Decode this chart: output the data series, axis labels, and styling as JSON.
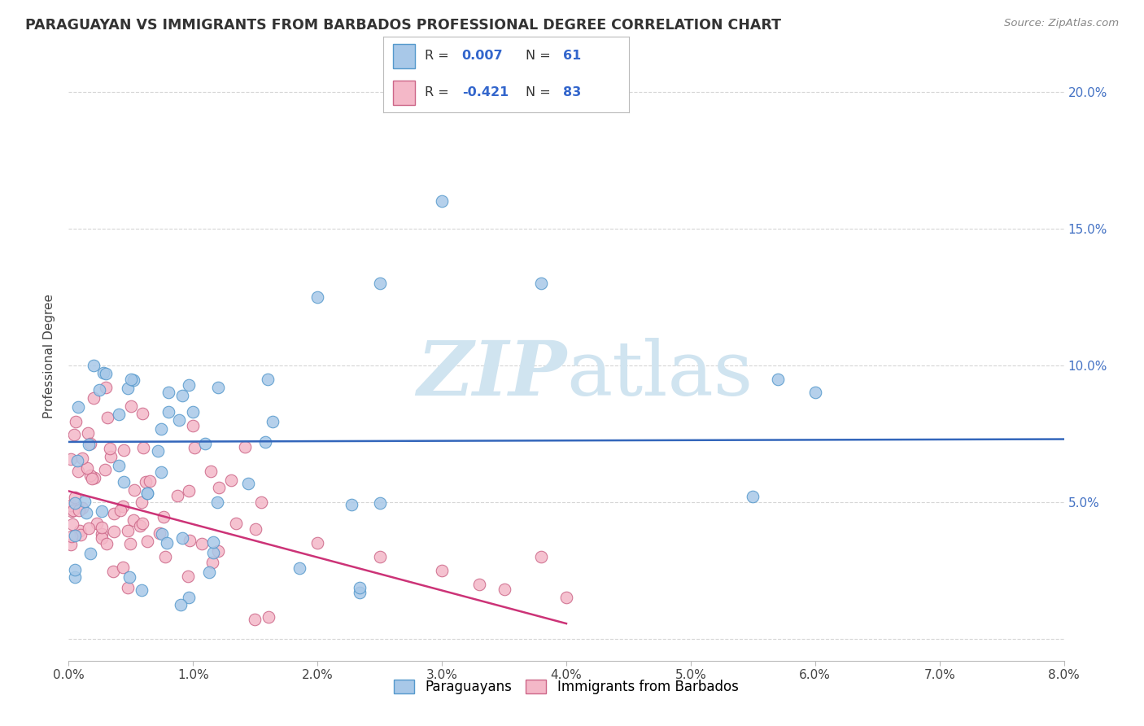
{
  "title": "PARAGUAYAN VS IMMIGRANTS FROM BARBADOS PROFESSIONAL DEGREE CORRELATION CHART",
  "source": "Source: ZipAtlas.com",
  "ylabel": "Professional Degree",
  "color_blue": "#a8c8e8",
  "color_pink": "#f4b8c8",
  "edge_blue": "#5599cc",
  "edge_pink": "#cc6688",
  "trend_blue": "#3366bb",
  "trend_pink": "#cc3377",
  "watermark_color": "#d0e4f0",
  "label1": "Paraguayans",
  "label2": "Immigrants from Barbados",
  "xmin": 0.0,
  "xmax": 0.08,
  "ymin": -0.008,
  "ymax": 0.215,
  "blue_trend_y0": 0.072,
  "blue_trend_y1": 0.073,
  "pink_trend_x0": 0.0,
  "pink_trend_y0": 0.054,
  "pink_trend_x1": 0.038,
  "pink_trend_y1": 0.008
}
